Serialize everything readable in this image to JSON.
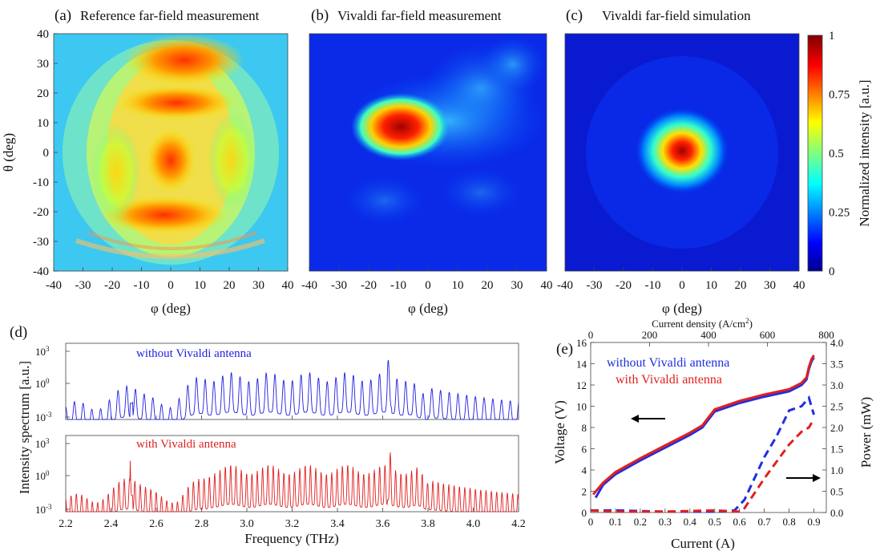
{
  "panels": {
    "a": {
      "label": "(a)",
      "title": "Reference far-field measurement"
    },
    "b": {
      "label": "(b)",
      "title": "Vivaldi far-field measurement"
    },
    "c": {
      "label": "(c)",
      "title": "Vivaldi far-field simulation"
    },
    "d": {
      "label": "(d)"
    },
    "e": {
      "label": "(e)"
    }
  },
  "chart_data": [
    {
      "id": "a",
      "type": "heatmap",
      "title": "Reference far-field measurement",
      "xlabel": "φ (deg)",
      "ylabel": "θ (deg)",
      "xlim": [
        -40,
        40
      ],
      "ylim": [
        -40,
        40
      ],
      "xticks": [
        "-40",
        "-30",
        "-20",
        "-10",
        "0",
        "10",
        "20",
        "30",
        "40"
      ],
      "yticks": [
        "40",
        "30",
        "20",
        "10",
        "0",
        "-10",
        "-20",
        "-30",
        "-40"
      ],
      "features": [
        {
          "phi": 0,
          "theta": 0,
          "intensity": 0.6
        },
        {
          "phi": 5,
          "theta": 35,
          "intensity": 0.85
        },
        {
          "phi": 2,
          "theta": 17,
          "intensity": 0.9
        },
        {
          "phi": 0,
          "theta": -20,
          "intensity": 0.9
        },
        {
          "phi": 0,
          "theta": -5,
          "intensity": 0.85
        }
      ]
    },
    {
      "id": "b",
      "type": "heatmap",
      "title": "Vivaldi far-field measurement",
      "xlabel": "φ (deg)",
      "ylabel": "",
      "xlim": [
        -40,
        40
      ],
      "ylim": [
        -40,
        40
      ],
      "xticks": [
        "-40",
        "-30",
        "-20",
        "-10",
        "0",
        "10",
        "20",
        "30",
        "40"
      ],
      "features": [
        {
          "phi": -10,
          "theta": 10,
          "intensity": 1.0
        },
        {
          "phi": -5,
          "theta": 8,
          "intensity": 0.85
        },
        {
          "phi": 15,
          "theta": 8,
          "intensity": 0.3
        },
        {
          "phi": 30,
          "theta": 28,
          "intensity": 0.3
        }
      ]
    },
    {
      "id": "c",
      "type": "heatmap",
      "title": "Vivaldi far-field simulation",
      "xlabel": "φ (deg)",
      "ylabel": "",
      "xlim": [
        -40,
        40
      ],
      "ylim": [
        -40,
        40
      ],
      "xticks": [
        "-40",
        "-30",
        "-20",
        "-10",
        "0",
        "10",
        "20",
        "30",
        "40"
      ],
      "features": [
        {
          "phi": 0,
          "theta": 0,
          "intensity": 1.0
        }
      ]
    },
    {
      "id": "colorbar",
      "type": "heatmap",
      "label": "Normalized intensity [a.u.]",
      "range": [
        0,
        1
      ],
      "ticks": [
        "1",
        "0.75",
        "0.5",
        "0.25",
        "0"
      ]
    },
    {
      "id": "d",
      "type": "line",
      "xlabel": "Frequency (THz)",
      "ylabel": "Intensity spectrum [a.u.]",
      "xlim": [
        2.2,
        4.2
      ],
      "xticks": [
        "2.2",
        "2.4",
        "2.6",
        "2.8",
        "3.0",
        "3.2",
        "3.4",
        "3.6",
        "3.8",
        "4.0",
        "4.2"
      ],
      "yscale": "log",
      "series": [
        {
          "name": "without Vivaldi antenna",
          "color": "#1f1fe0",
          "peak_freq": 2.49,
          "comb_spacing": 0.0385,
          "band": [
            2.7,
            3.75
          ]
        },
        {
          "name": "with Vivaldi antenna",
          "color": "#e01f1f",
          "peak_freq": 2.49,
          "comb_spacing": 0.0235,
          "band": [
            2.75,
            3.78
          ]
        }
      ],
      "ytick_labels": {
        "top": "10",
        "mid": "10",
        "bot": "10",
        "top_exp": "3",
        "mid_exp": "0",
        "bot_exp": "-3"
      }
    },
    {
      "id": "e",
      "type": "line",
      "xlabel": "Current (A)",
      "ylabel": "Voltage (V)",
      "y2label": "Power (mW)",
      "top_xlabel": "Current density (A/cm",
      "top_xlabel_sup": "2",
      "top_xlabel_end": ")",
      "xlim": [
        0,
        0.95
      ],
      "ylim": [
        0,
        16
      ],
      "y2lim": [
        0,
        4.0
      ],
      "topxlim": [
        0,
        800
      ],
      "xticks": [
        "0",
        "0.1",
        "0.2",
        "0.3",
        "0.4",
        "0.5",
        "0.6",
        "0.7",
        "0.8",
        "0.9"
      ],
      "yticks": [
        "0",
        "2",
        "4",
        "6",
        "8",
        "10",
        "12",
        "14",
        "16"
      ],
      "y2ticks": [
        "0.0",
        "0.5",
        "1.0",
        "1.5",
        "2.0",
        "2.5",
        "3.0",
        "3.5",
        "4.0"
      ],
      "topticks": [
        "0",
        "200",
        "400",
        "600",
        "800"
      ],
      "series": [
        {
          "name": "without Vivaldi antenna",
          "color": "#1f2fe0",
          "kind": "voltage",
          "x": [
            0.02,
            0.05,
            0.1,
            0.2,
            0.3,
            0.4,
            0.45,
            0.5,
            0.6,
            0.7,
            0.8,
            0.85,
            0.87,
            0.88,
            0.89,
            0.9
          ],
          "y": [
            1.4,
            2.6,
            3.6,
            4.9,
            6.1,
            7.3,
            8.0,
            9.5,
            10.3,
            10.9,
            11.4,
            12.0,
            12.5,
            13.5,
            14.2,
            14.6
          ]
        },
        {
          "name": "with Vivaldi antenna",
          "color": "#e02020",
          "kind": "voltage",
          "x": [
            0.01,
            0.05,
            0.1,
            0.2,
            0.3,
            0.4,
            0.45,
            0.5,
            0.6,
            0.7,
            0.8,
            0.85,
            0.87,
            0.88,
            0.89,
            0.9
          ],
          "y": [
            1.7,
            2.8,
            3.8,
            5.1,
            6.3,
            7.5,
            8.2,
            9.7,
            10.5,
            11.1,
            11.6,
            12.2,
            12.7,
            13.7,
            14.4,
            14.8
          ]
        },
        {
          "name": "without Vivaldi antenna (power)",
          "color": "#1f2fe0",
          "kind": "power",
          "x": [
            0.0,
            0.1,
            0.3,
            0.5,
            0.58,
            0.62,
            0.7,
            0.75,
            0.8,
            0.85,
            0.88,
            0.9
          ],
          "y": [
            0.05,
            0.05,
            0.02,
            0.02,
            0.05,
            0.3,
            1.3,
            1.8,
            2.4,
            2.5,
            2.7,
            2.3
          ]
        },
        {
          "name": "with Vivaldi antenna (power)",
          "color": "#e02020",
          "kind": "power",
          "x": [
            0.0,
            0.1,
            0.3,
            0.5,
            0.6,
            0.62,
            0.7,
            0.75,
            0.8,
            0.85,
            0.88,
            0.9
          ],
          "y": [
            0.05,
            0.02,
            0.02,
            0.05,
            0.02,
            0.1,
            0.8,
            1.2,
            1.6,
            1.9,
            2.0,
            2.2
          ]
        }
      ],
      "legend": [
        "without Vivaldi antenna",
        "with Vivaldi antenna"
      ]
    }
  ]
}
